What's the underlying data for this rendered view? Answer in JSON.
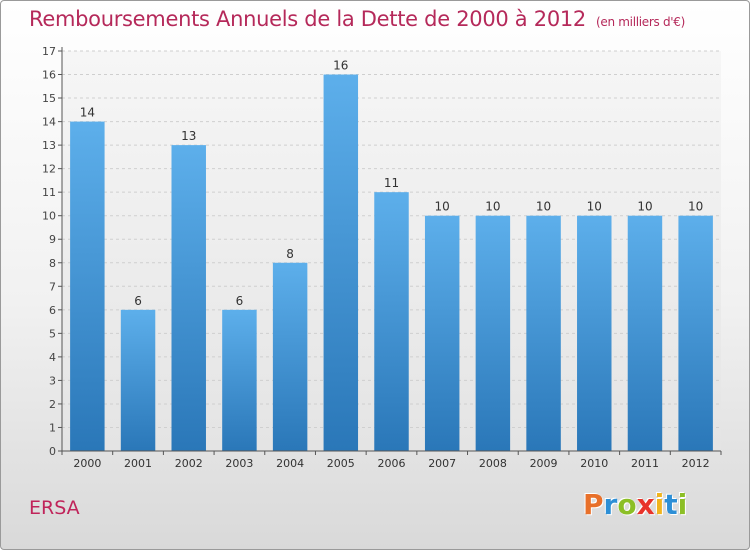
{
  "title": "Remboursements Annuels de la Dette de 2000 à 2012",
  "subtitle": "(en milliers d'€)",
  "commune": "ERSA",
  "logo": {
    "letters": [
      "P",
      "r",
      "o",
      "x",
      "i",
      "t",
      "i"
    ],
    "colors": [
      "#e8702a",
      "#2d8fd6",
      "#8cbf26",
      "#e8332a",
      "#f0b41e",
      "#2d8fd6",
      "#8cbf26"
    ]
  },
  "chart_data": {
    "type": "bar",
    "title": "Remboursements Annuels de la Dette de 2000 à 2012",
    "xlabel": "",
    "ylabel": "",
    "categories": [
      "2000",
      "2001",
      "2002",
      "2003",
      "2004",
      "2005",
      "2006",
      "2007",
      "2008",
      "2009",
      "2010",
      "2011",
      "2012"
    ],
    "values": [
      14,
      6,
      13,
      6,
      8,
      16,
      11,
      10,
      10,
      10,
      10,
      10,
      10
    ],
    "ylim": [
      0,
      17
    ],
    "yticks": [
      0,
      1,
      2,
      3,
      4,
      5,
      6,
      7,
      8,
      9,
      10,
      11,
      12,
      13,
      14,
      15,
      16,
      17
    ],
    "grid": true,
    "legend": "none",
    "bar_color": "#3a8fd6"
  }
}
